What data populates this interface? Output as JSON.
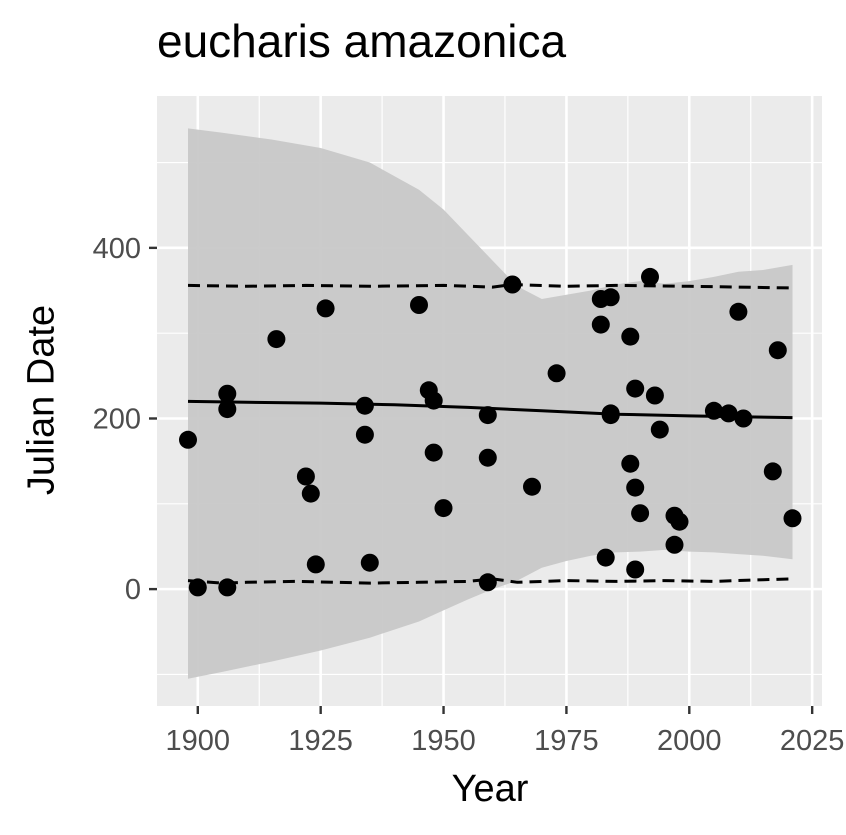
{
  "chart_data": {
    "type": "scatter",
    "title": "eucharis amazonica",
    "xlabel": "Year",
    "ylabel": "Julian Date",
    "xlim": [
      1891.7,
      2027
    ],
    "ylim": [
      -137,
      578
    ],
    "x_ticks": [
      1900,
      1925,
      1950,
      1975,
      2000,
      2025
    ],
    "y_ticks": [
      0,
      200,
      400
    ],
    "grid": true,
    "points": [
      [
        1898,
        175
      ],
      [
        1900,
        2
      ],
      [
        1906,
        2
      ],
      [
        1906,
        229
      ],
      [
        1906,
        211
      ],
      [
        1916,
        293
      ],
      [
        1922,
        132
      ],
      [
        1923,
        112
      ],
      [
        1924,
        29
      ],
      [
        1926,
        329
      ],
      [
        1934,
        215
      ],
      [
        1934,
        181
      ],
      [
        1935,
        31
      ],
      [
        1945,
        333
      ],
      [
        1947,
        233
      ],
      [
        1948,
        221
      ],
      [
        1948,
        160
      ],
      [
        1950,
        95
      ],
      [
        1959,
        8
      ],
      [
        1959,
        204
      ],
      [
        1959,
        154
      ],
      [
        1964,
        357
      ],
      [
        1968,
        120
      ],
      [
        1973,
        253
      ],
      [
        1982,
        340
      ],
      [
        1982,
        310
      ],
      [
        1983,
        37
      ],
      [
        1984,
        342
      ],
      [
        1984,
        204
      ],
      [
        1984,
        206
      ],
      [
        1988,
        296
      ],
      [
        1988,
        147
      ],
      [
        1989,
        235
      ],
      [
        1989,
        23
      ],
      [
        1989,
        119
      ],
      [
        1990,
        89
      ],
      [
        1992,
        366
      ],
      [
        1993,
        227
      ],
      [
        1994,
        187
      ],
      [
        1997,
        52
      ],
      [
        1997,
        86
      ],
      [
        1998,
        79
      ],
      [
        2005,
        209
      ],
      [
        2008,
        206
      ],
      [
        2010,
        325
      ],
      [
        2011,
        200
      ],
      [
        2017,
        138
      ],
      [
        2018,
        280
      ],
      [
        2021,
        83
      ]
    ],
    "trend_line": {
      "x": [
        1898,
        1910,
        1925,
        1940,
        1955,
        1970,
        1985,
        2000,
        2010,
        2021
      ],
      "y": [
        220,
        219,
        218,
        216,
        213,
        209,
        205,
        203,
        202,
        201
      ]
    },
    "confidence_band": {
      "x": [
        1898,
        1905,
        1915,
        1925,
        1935,
        1945,
        1950,
        1955,
        1960,
        1965,
        1970,
        1975,
        1980,
        1985,
        1990,
        1995,
        2000,
        2005,
        2010,
        2015,
        2021
      ],
      "upper": [
        540,
        535,
        527,
        517,
        500,
        468,
        445,
        415,
        385,
        355,
        340,
        345,
        350,
        357,
        361,
        358,
        361,
        366,
        372,
        374,
        380
      ],
      "lower": [
        -105,
        -97,
        -85,
        -72,
        -57,
        -38,
        -25,
        -12,
        0,
        10,
        25,
        33,
        39,
        43,
        44,
        46,
        44,
        43,
        41,
        39,
        35
      ]
    },
    "quantile_lines": [
      {
        "x": [
          1898,
          1910,
          1922,
          1935,
          1950,
          1960,
          1964,
          1975,
          1985,
          2000,
          2010,
          2021
        ],
        "y": [
          356,
          355,
          356,
          355,
          356,
          354,
          357,
          355,
          356,
          355,
          354,
          353
        ]
      },
      {
        "x": [
          1898,
          1905,
          1910,
          1920,
          1935,
          1945,
          1955,
          1960,
          1965,
          1975,
          1985,
          1995,
          2005,
          2015,
          2021
        ],
        "y": [
          10,
          7,
          8,
          9,
          7,
          8,
          9,
          12,
          8,
          10,
          9,
          10,
          9,
          11,
          12
        ]
      }
    ],
    "colors": {
      "panel": "#ebebeb",
      "grid": "#ffffff",
      "band": "#c8c8c8",
      "points": "#000000",
      "lines": "#000000",
      "ticks": "#333333"
    }
  }
}
